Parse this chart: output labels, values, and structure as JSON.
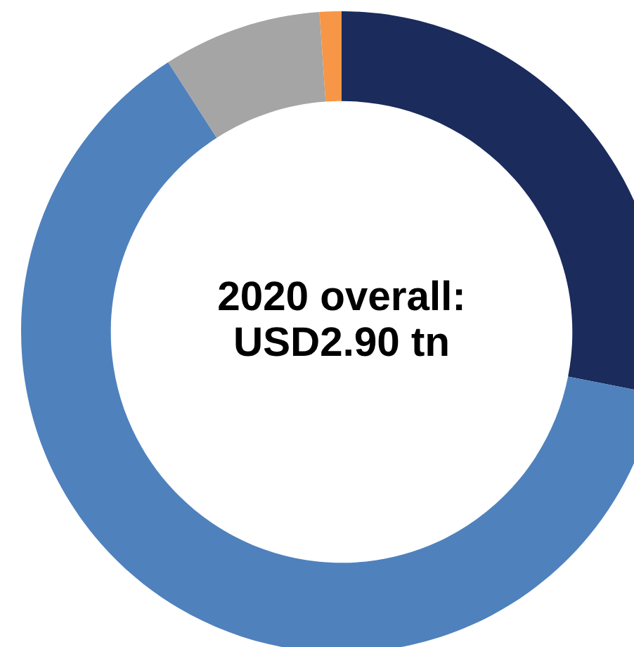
{
  "chart_data": {
    "type": "donut",
    "title": "2020 overall:\nUSD2.90 tn",
    "categories": [
      null,
      null,
      null,
      null
    ],
    "values": [
      28.1,
      62.8,
      8.0,
      1.1
    ],
    "colors": [
      "#1a2b5c",
      "#4f81bd",
      "#a5a5a5",
      "#f79646"
    ]
  }
}
